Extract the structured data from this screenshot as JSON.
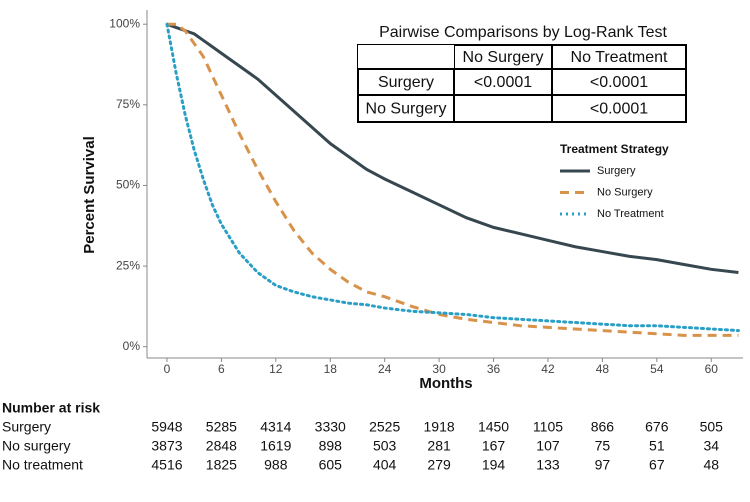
{
  "chart_data": {
    "type": "line",
    "x_label": "Months",
    "y_label": "Percent Survival",
    "x": [
      0,
      1,
      2,
      3,
      4,
      5,
      6,
      8,
      10,
      12,
      14,
      16,
      18,
      20,
      22,
      24,
      27,
      30,
      33,
      36,
      39,
      42,
      45,
      48,
      51,
      54,
      57,
      60,
      63
    ],
    "series": [
      {
        "name": "Surgery",
        "color": "#37474f",
        "dash": "solid",
        "values": [
          100,
          99,
          98,
          97,
          95,
          93,
          91,
          87,
          83,
          78,
          73,
          68,
          63,
          59,
          55,
          52,
          48,
          44,
          40,
          37,
          35,
          33,
          31,
          29.5,
          28,
          27,
          25.5,
          24,
          23
        ]
      },
      {
        "name": "No Surgery",
        "color": "#d8924a",
        "dash": "dashed",
        "values": [
          100,
          100,
          98,
          94,
          90,
          84,
          78,
          66,
          55,
          45,
          36,
          29,
          24,
          20,
          17,
          15.5,
          12.5,
          10,
          8.5,
          7.5,
          6.5,
          6,
          5.5,
          5,
          4.5,
          4,
          3.5,
          3.5,
          3.5
        ]
      },
      {
        "name": "No Treatment",
        "color": "#2a9fc6",
        "dash": "dotted",
        "values": [
          100,
          85,
          72,
          61,
          52,
          44,
          38,
          29,
          23,
          19,
          17,
          15.5,
          14.5,
          13.5,
          13,
          12,
          11,
          10.5,
          10,
          9,
          8.5,
          8,
          7.5,
          7,
          6.5,
          6.5,
          6,
          5.5,
          5
        ]
      }
    ],
    "legend_title": "Treatment Strategy",
    "xlim": [
      -2.2,
      63.5
    ],
    "xticks": [
      0,
      6,
      12,
      18,
      24,
      30,
      36,
      42,
      48,
      54,
      60
    ],
    "ylim": [
      -3.5,
      104.4
    ],
    "yticks": [
      {
        "value": 0,
        "label": "0%"
      },
      {
        "value": 25,
        "label": "25%"
      },
      {
        "value": 50,
        "label": "50%"
      },
      {
        "value": 75,
        "label": "75%"
      },
      {
        "value": 100,
        "label": "100%"
      }
    ],
    "grid": false
  },
  "comparison_table": {
    "title": "Pairwise Comparisons by Log-Rank Test",
    "columns": [
      "No Surgery",
      "No Treatment"
    ],
    "rows": [
      {
        "label": "Surgery",
        "values": [
          "<0.0001",
          "<0.0001"
        ]
      },
      {
        "label": "No Surgery",
        "values": [
          null,
          "<0.0001"
        ]
      }
    ]
  },
  "risk_table": {
    "title": "Number at risk",
    "rows": [
      {
        "label": "Surgery",
        "values": [
          5948,
          5285,
          4314,
          3330,
          2525,
          1918,
          1450,
          1105,
          866,
          676,
          505
        ]
      },
      {
        "label": "No surgery",
        "values": [
          3873,
          2848,
          1619,
          898,
          503,
          281,
          167,
          107,
          75,
          51,
          34
        ]
      },
      {
        "label": "No treatment",
        "values": [
          4516,
          1825,
          988,
          605,
          404,
          279,
          194,
          133,
          97,
          67,
          48
        ]
      }
    ]
  }
}
